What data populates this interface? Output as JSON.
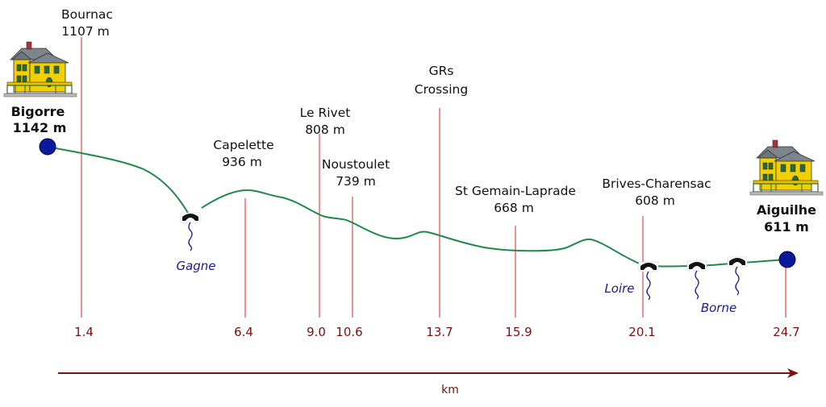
{
  "colors": {
    "profile": "#1e8a4a",
    "marker_line": "#e02020",
    "km_text": "#7a1010",
    "axis_arrow": "#7a1010",
    "endpoint": "#0a1a9a",
    "river_text": "#1a1a8c",
    "house_body": "#f2d000",
    "house_roof": "#808890"
  },
  "endpoints": {
    "start": {
      "name": "Bigorre",
      "elev": "1142 m",
      "icon": "house-icon"
    },
    "end": {
      "name": "Aiguilhe",
      "elev": "611 m",
      "icon": "house-icon"
    }
  },
  "markers": [
    {
      "id": "bournac",
      "km": "1.4",
      "name": "Bournac",
      "elev": "1107 m"
    },
    {
      "id": "capelette",
      "km": "6.4",
      "name": "Capelette",
      "elev": "936 m"
    },
    {
      "id": "le-rivet",
      "km": "9.0",
      "name": "Le Rivet",
      "elev": "808 m"
    },
    {
      "id": "noustoulet",
      "km": "10.6",
      "name": "Noustoulet",
      "elev": "739 m"
    },
    {
      "id": "grs-crossing",
      "km": "13.7",
      "name": "GRs",
      "name2": "Crossing",
      "elev": ""
    },
    {
      "id": "st-gemain",
      "km": "15.9",
      "name": "St Gemain-Laprade",
      "elev": "668 m"
    },
    {
      "id": "brives",
      "km": "20.1",
      "name": "Brives-Charensac",
      "elev": "608 m"
    },
    {
      "id": "aiguilhe",
      "km": "24.7",
      "name": "",
      "elev": ""
    }
  ],
  "rivers": [
    {
      "name": "Gagne",
      "icon": "bridge-icon"
    },
    {
      "name": "Loire",
      "icon": "bridge-icon"
    },
    {
      "name": "Borne",
      "icon": "bridge-icon"
    },
    {
      "name": "",
      "icon": "bridge-icon"
    }
  ],
  "axis": {
    "label": "km"
  }
}
